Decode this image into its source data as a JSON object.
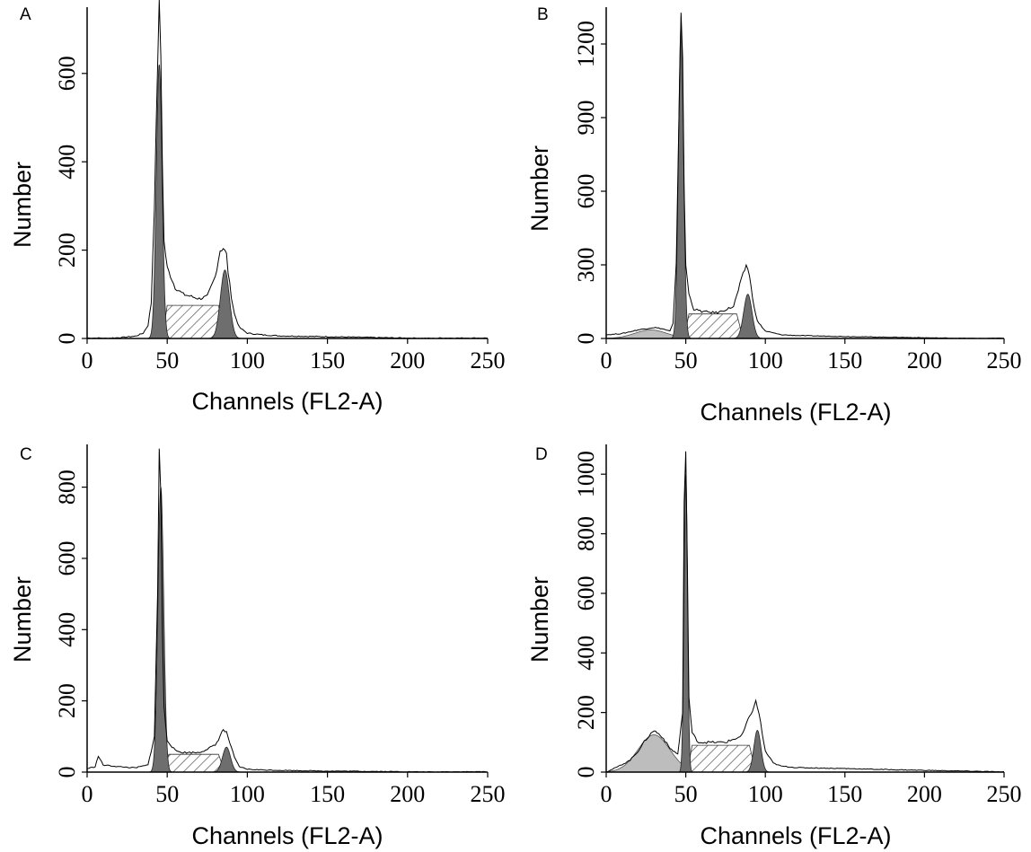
{
  "figure": {
    "panels": [
      {
        "label": "A",
        "ylabel": "Number",
        "xlabel": "Channels (FL2-A)",
        "xticks": [
          "0",
          "50",
          "100",
          "150",
          "200",
          "250"
        ],
        "yticks": [
          "0",
          "200",
          "400",
          "600"
        ]
      },
      {
        "label": "B",
        "ylabel": "Number",
        "xlabel": "Channels (FL2-A)",
        "xticks": [
          "0",
          "50",
          "100",
          "150",
          "200",
          "250"
        ],
        "yticks": [
          "0",
          "300",
          "600",
          "900",
          "1200"
        ]
      },
      {
        "label": "C",
        "ylabel": "Number",
        "xlabel": "Channels (FL2-A)",
        "xticks": [
          "0",
          "50",
          "100",
          "150",
          "200",
          "250"
        ],
        "yticks": [
          "0",
          "200",
          "400",
          "600",
          "800"
        ]
      },
      {
        "label": "D",
        "ylabel": "Number",
        "xlabel": "Channels (FL2-A)",
        "xticks": [
          "0",
          "50",
          "100",
          "150",
          "200",
          "250"
        ],
        "yticks": [
          "0",
          "200",
          "400",
          "600",
          "800",
          "1000"
        ]
      }
    ]
  },
  "colors": {
    "outline": "#000000",
    "g1_fill": "#6e6e6e",
    "g2_fill": "#6e6e6e",
    "s_phase_hatch": "#555555",
    "debris_fill": "#bdbdbd"
  },
  "chart_data": [
    {
      "type": "area",
      "panel": "A",
      "xlabel": "Channels (FL2-A)",
      "ylabel": "Number",
      "xlim": [
        0,
        250
      ],
      "ylim": [
        0,
        750
      ],
      "x": [
        0,
        10,
        20,
        30,
        35,
        38,
        40,
        42,
        44,
        45,
        46,
        47,
        48,
        50,
        55,
        60,
        70,
        75,
        80,
        83,
        85,
        87,
        88,
        90,
        92,
        95,
        100,
        110,
        120,
        150,
        180,
        200,
        220,
        240,
        250
      ],
      "series": [
        {
          "values": [
            0,
            0,
            2,
            5,
            12,
            30,
            80,
            300,
            620,
            760,
            640,
            400,
            220,
            160,
            115,
            100,
            90,
            95,
            140,
            200,
            205,
            190,
            150,
            95,
            55,
            25,
            12,
            8,
            6,
            4,
            2,
            1,
            0,
            0,
            0
          ]
        }
      ],
      "fit": {
        "g1": {
          "mean": 45,
          "sd": 1.8,
          "peak": 620
        },
        "s_phase": {
          "from": 48,
          "to": 85,
          "level": 75
        },
        "g2": {
          "mean": 86,
          "sd": 2.8,
          "peak": 155
        },
        "debris": {
          "level": 0
        }
      }
    },
    {
      "type": "area",
      "panel": "B",
      "xlabel": "Channels (FL2-A)",
      "ylabel": "Number",
      "xlim": [
        0,
        250
      ],
      "ylim": [
        0,
        1350
      ],
      "x": [
        0,
        10,
        20,
        30,
        35,
        40,
        42,
        44,
        46,
        47,
        48,
        49,
        50,
        52,
        55,
        60,
        70,
        80,
        85,
        88,
        90,
        92,
        95,
        100,
        110,
        120,
        150,
        180,
        200,
        220,
        240,
        250
      ],
      "series": [
        {
          "values": [
            15,
            20,
            35,
            45,
            40,
            30,
            60,
            300,
            1000,
            1330,
            1150,
            600,
            300,
            180,
            120,
            110,
            105,
            130,
            240,
            300,
            260,
            160,
            70,
            30,
            15,
            12,
            8,
            5,
            3,
            1,
            0,
            0
          ]
        }
      ],
      "fit": {
        "g1": {
          "mean": 47,
          "sd": 1.6,
          "peak": 1270
        },
        "s_phase": {
          "from": 50,
          "to": 85,
          "level": 100
        },
        "g2": {
          "mean": 89,
          "sd": 2.6,
          "peak": 180
        },
        "debris": {
          "mean": 28,
          "sd": 10,
          "peak": 35
        }
      }
    },
    {
      "type": "area",
      "panel": "C",
      "xlabel": "Channels (FL2-A)",
      "ylabel": "Number",
      "xlim": [
        0,
        250
      ],
      "ylim": [
        0,
        920
      ],
      "x": [
        0,
        5,
        7,
        10,
        20,
        30,
        38,
        42,
        44,
        45,
        46,
        47,
        48,
        50,
        55,
        60,
        70,
        80,
        85,
        87,
        90,
        92,
        95,
        100,
        110,
        120,
        150,
        180,
        200,
        220,
        250
      ],
      "series": [
        {
          "values": [
            10,
            15,
            45,
            20,
            15,
            12,
            20,
            100,
            500,
            910,
            780,
            400,
            180,
            90,
            60,
            55,
            55,
            75,
            120,
            110,
            70,
            40,
            15,
            8,
            6,
            5,
            3,
            2,
            1,
            0,
            0
          ]
        }
      ],
      "fit": {
        "g1": {
          "mean": 46,
          "sd": 1.8,
          "peak": 800
        },
        "s_phase": {
          "from": 49,
          "to": 85,
          "level": 50
        },
        "g2": {
          "mean": 87,
          "sd": 2.5,
          "peak": 70
        },
        "debris": {
          "level": 0
        }
      }
    },
    {
      "type": "area",
      "panel": "D",
      "xlabel": "Channels (FL2-A)",
      "ylabel": "Number",
      "xlim": [
        0,
        250
      ],
      "ylim": [
        0,
        1100
      ],
      "x": [
        0,
        8,
        15,
        20,
        25,
        30,
        35,
        40,
        45,
        48,
        49,
        50,
        51,
        52,
        54,
        58,
        65,
        75,
        85,
        92,
        94,
        96,
        98,
        100,
        105,
        110,
        120,
        150,
        180,
        200,
        220,
        240,
        250
      ],
      "series": [
        {
          "values": [
            0,
            20,
            40,
            70,
            110,
            140,
            120,
            80,
            60,
            200,
            900,
            1070,
            700,
            250,
            130,
            100,
            100,
            100,
            120,
            210,
            235,
            200,
            130,
            70,
            30,
            20,
            15,
            12,
            8,
            6,
            4,
            2,
            0
          ]
        }
      ],
      "fit": {
        "g1": {
          "mean": 50,
          "sd": 1.1,
          "peak": 1000
        },
        "s_phase": {
          "from": 52,
          "to": 93,
          "level": 90
        },
        "g2": {
          "mean": 95,
          "sd": 2.2,
          "peak": 140
        },
        "debris": {
          "mean": 30,
          "sd": 10,
          "peak": 125
        }
      }
    }
  ]
}
